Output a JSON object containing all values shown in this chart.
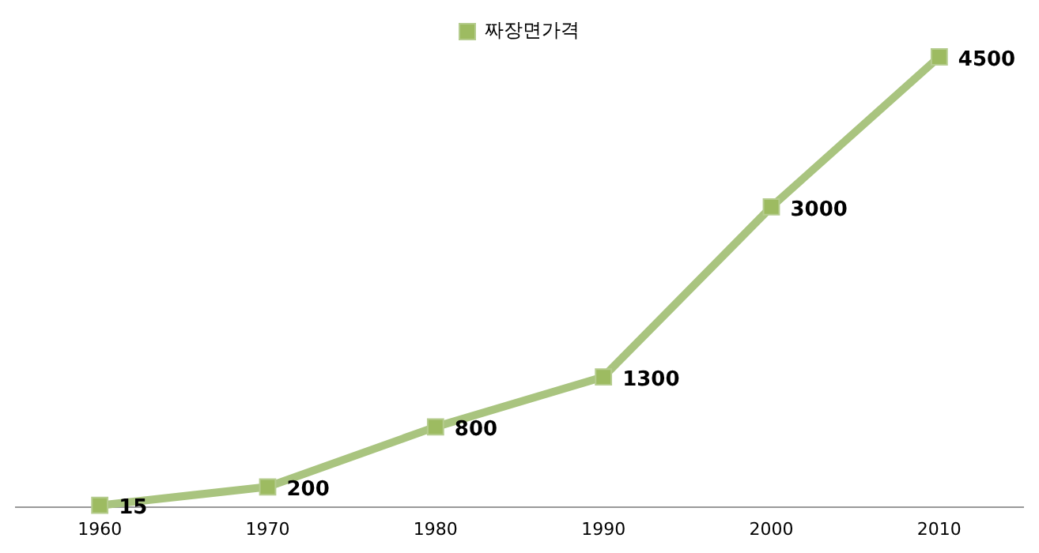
{
  "chart_data": {
    "type": "line",
    "categories": [
      "1960",
      "1970",
      "1980",
      "1990",
      "2000",
      "2010"
    ],
    "series": [
      {
        "name": "짜장면가격",
        "color": "#a9c47f",
        "values": [
          15,
          200,
          800,
          1300,
          3000,
          4500
        ]
      }
    ],
    "legend": "top",
    "marker": "square",
    "data_labels": true,
    "grid": false,
    "tick_labels": "x"
  }
}
